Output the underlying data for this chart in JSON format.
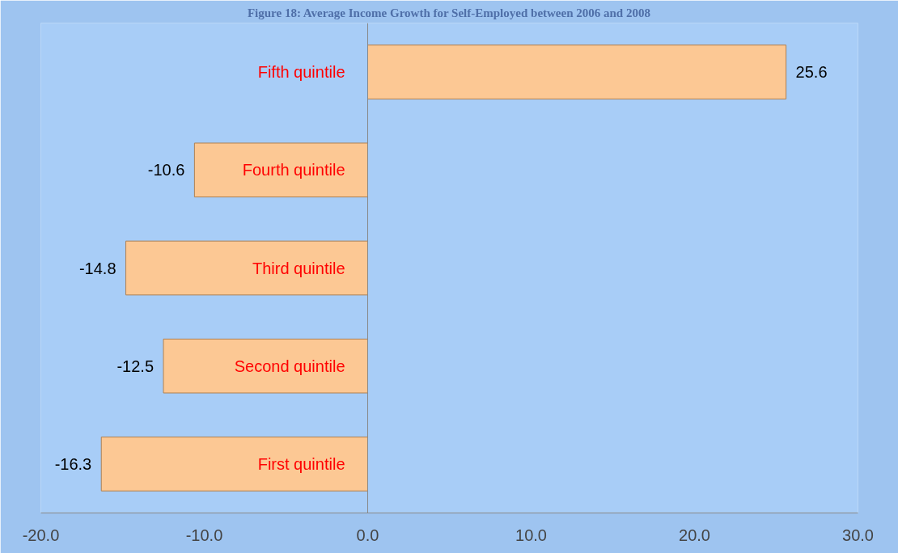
{
  "chart_data": {
    "type": "bar",
    "orientation": "horizontal",
    "title": "Figure 18: Average Income Growth for Self-Employed between 2006 and 2008",
    "categories": [
      "Fifth quintile",
      "Fourth quintile",
      "Third quintile",
      "Second quintile",
      "First quintile"
    ],
    "values": [
      25.6,
      -10.6,
      -14.8,
      -12.5,
      -16.3
    ],
    "color": "#fcc894",
    "xlim": [
      -20,
      30
    ],
    "xticks": [
      {
        "value": -20,
        "label": "-20.0"
      },
      {
        "value": -10,
        "label": "-10.0"
      },
      {
        "value": 0,
        "label": "0.0"
      },
      {
        "value": 10,
        "label": "10.0"
      },
      {
        "value": 20,
        "label": "20.0"
      },
      {
        "value": 30,
        "label": "30.0"
      }
    ],
    "data_labels": true,
    "grid": false
  }
}
